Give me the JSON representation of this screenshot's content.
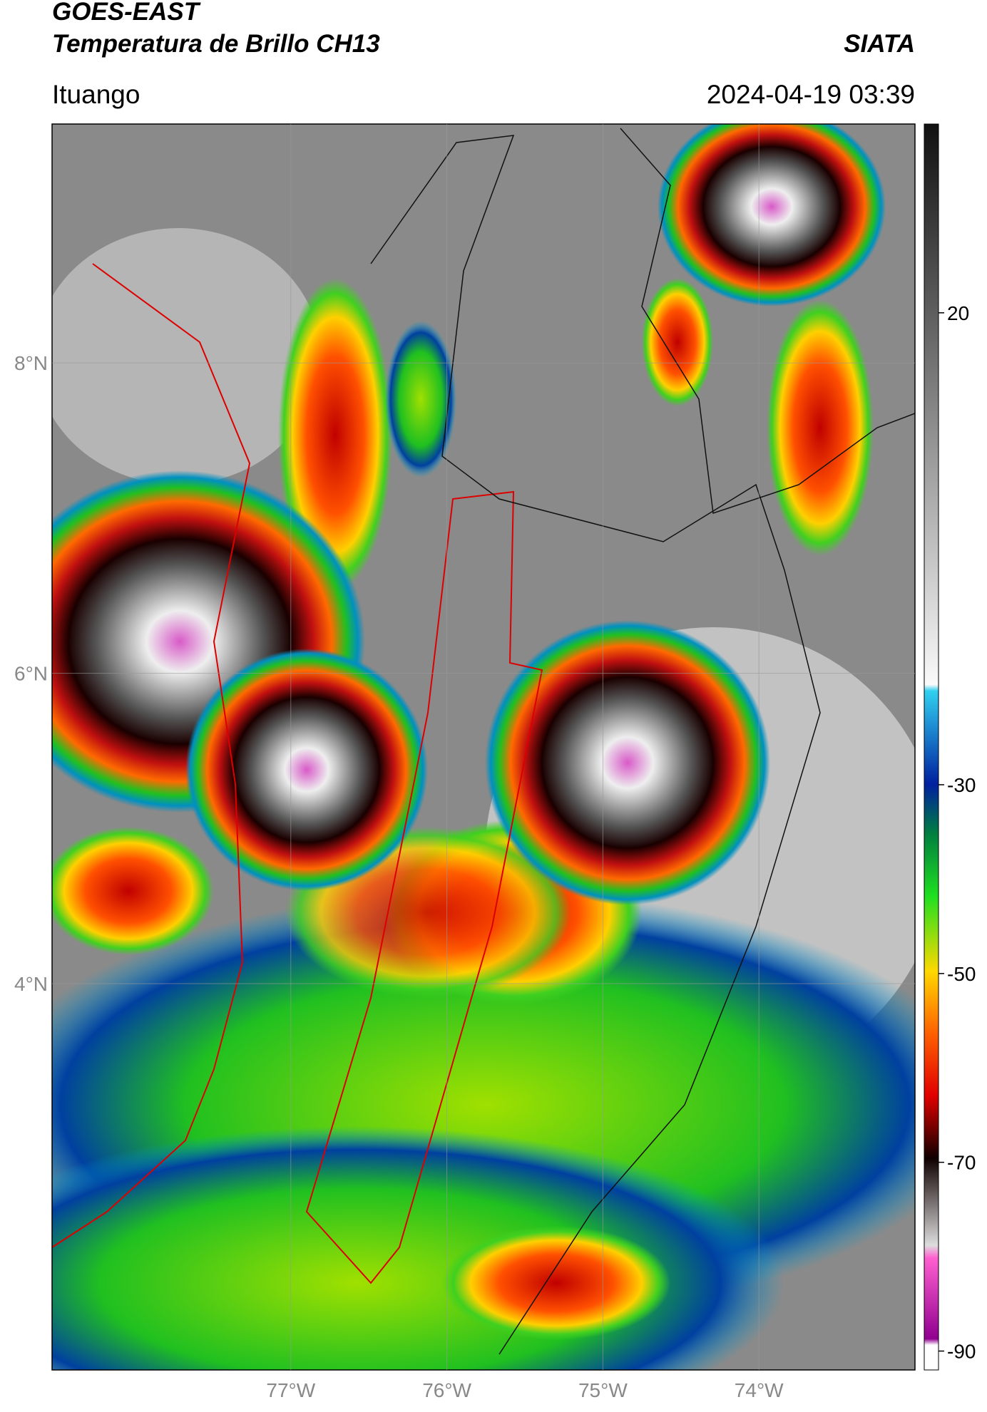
{
  "header": {
    "title": "GOES-EAST",
    "subtitle": "Temperatura de Brillo CH13",
    "source": "SIATA",
    "region": "Ituango",
    "datetime": "2024-04-19 03:39"
  },
  "map": {
    "xlim": [
      -78.53,
      -73.0
    ],
    "ylim": [
      1.51,
      9.54
    ],
    "xticks": [
      {
        "value": -77,
        "label": "77°W"
      },
      {
        "value": -76,
        "label": "76°W"
      },
      {
        "value": -75,
        "label": "75°W"
      },
      {
        "value": -74,
        "label": "74°W"
      }
    ],
    "yticks": [
      {
        "value": 8,
        "label": "8°N"
      },
      {
        "value": 6,
        "label": "6°N"
      },
      {
        "value": 4,
        "label": "4°N"
      }
    ],
    "grid": true,
    "colorbar": {
      "lim": [
        -92,
        40
      ],
      "ticks": [
        20,
        -30,
        -50,
        -70,
        -90
      ]
    }
  }
}
